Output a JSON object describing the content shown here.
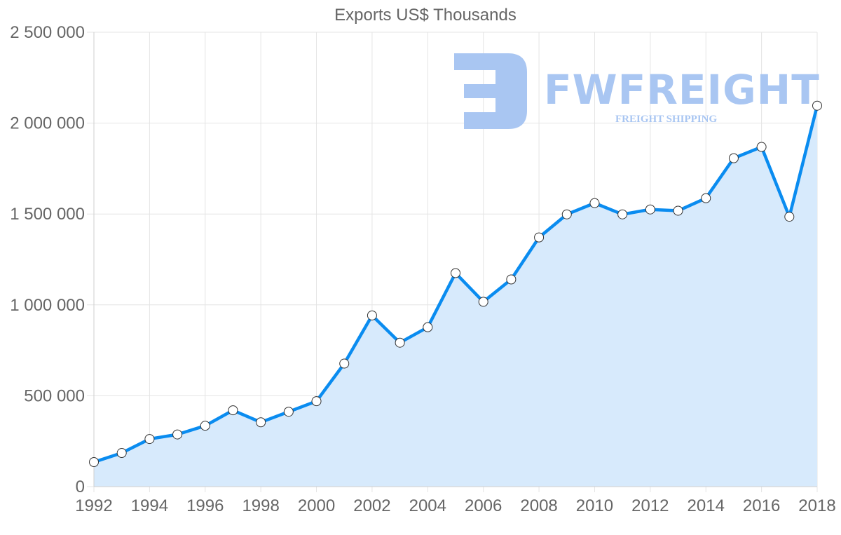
{
  "chart_data": {
    "type": "line",
    "title": "Exports US$ Thousands",
    "xlabel": "",
    "ylabel": "",
    "x": [
      1992,
      1993,
      1994,
      1995,
      1996,
      1997,
      1998,
      1999,
      2000,
      2001,
      2002,
      2003,
      2004,
      2005,
      2006,
      2007,
      2008,
      2009,
      2010,
      2011,
      2012,
      2013,
      2014,
      2015,
      2016,
      2017,
      2018
    ],
    "series": [
      {
        "name": "Exports US$ Thousands",
        "color": "#0a8cf0",
        "fill": "#d7eafc",
        "values": [
          135000,
          185000,
          262000,
          287000,
          335000,
          420000,
          354000,
          412000,
          470000,
          677000,
          942000,
          792000,
          877000,
          1175000,
          1017000,
          1140000,
          1371000,
          1498000,
          1560000,
          1498000,
          1525000,
          1518000,
          1587000,
          1807000,
          1869000,
          1485000,
          2096000
        ]
      }
    ],
    "ylim": [
      0,
      2500000
    ],
    "yticks": [
      0,
      500000,
      1000000,
      1500000,
      2000000,
      2500000
    ],
    "ytick_labels": [
      "0",
      "500 000",
      "1 000 000",
      "1 500 000",
      "2 000 000",
      "2 500 000"
    ],
    "xtick_labels": [
      "1992",
      "1994",
      "1996",
      "1998",
      "2000",
      "2002",
      "2004",
      "2006",
      "2008",
      "2010",
      "2012",
      "2014",
      "2016",
      "2018"
    ],
    "grid": true,
    "legend": "none",
    "markers": "white circles with dark outline"
  },
  "watermark": {
    "brand": "FWFREIGHT",
    "tagline": "FREIGHT SHIPPING",
    "color": "#a9c6f2"
  }
}
